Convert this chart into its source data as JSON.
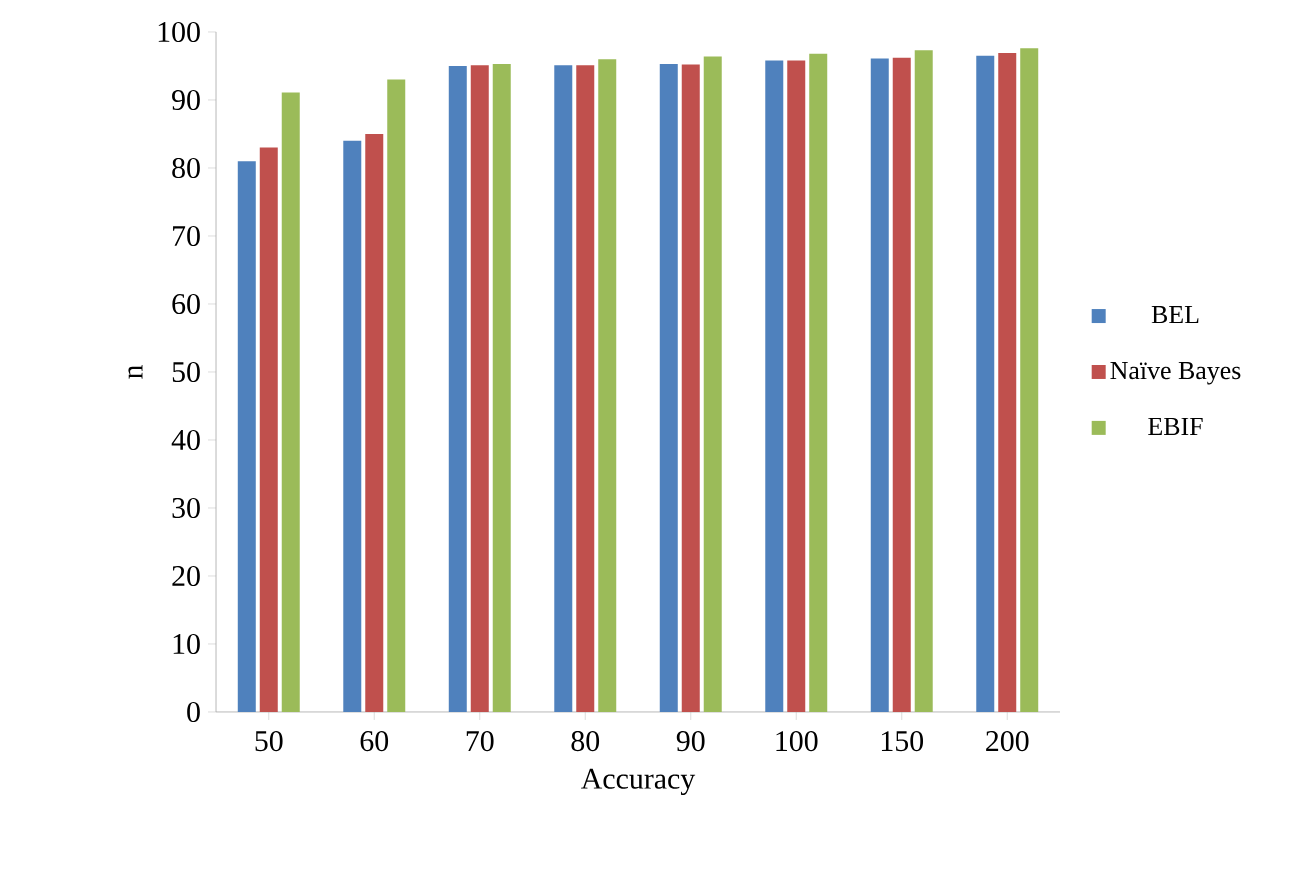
{
  "chart_data": {
    "type": "bar",
    "xlabel": "Accuracy",
    "ylabel": "n",
    "categories": [
      "50",
      "60",
      "70",
      "80",
      "90",
      "100",
      "150",
      "200"
    ],
    "series": [
      {
        "name": "BEL",
        "color": "#4f81bd",
        "values": [
          81,
          84,
          95,
          95.1,
          95.3,
          95.8,
          96.1,
          96.5
        ]
      },
      {
        "name": "Naïve Bayes",
        "color": "#c0504d",
        "values": [
          83,
          85,
          95.1,
          95.1,
          95.2,
          95.8,
          96.2,
          96.9
        ]
      },
      {
        "name": "EBIF",
        "color": "#9bbb59",
        "values": [
          91.1,
          93,
          95.3,
          96,
          96.4,
          96.8,
          97.3,
          97.6
        ]
      }
    ],
    "ylim": [
      0,
      100
    ],
    "yticks": [
      0,
      10,
      20,
      30,
      40,
      50,
      60,
      70,
      80,
      90,
      100
    ],
    "grid": false,
    "legend": "right"
  }
}
